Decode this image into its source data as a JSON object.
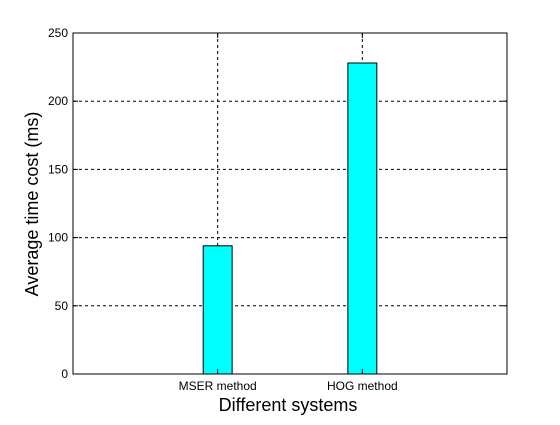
{
  "chart_data": {
    "type": "bar",
    "categories": [
      "MSER method",
      "HOG method"
    ],
    "values": [
      94,
      228
    ],
    "title": "",
    "xlabel": "Different systems",
    "ylabel": "Average time cost (ms)",
    "ylim": [
      0,
      250
    ],
    "yticks": [
      0,
      50,
      100,
      150,
      200,
      250
    ],
    "grid": true,
    "bar_color": "#00FFFF",
    "bar_edge_color": "#000000"
  }
}
